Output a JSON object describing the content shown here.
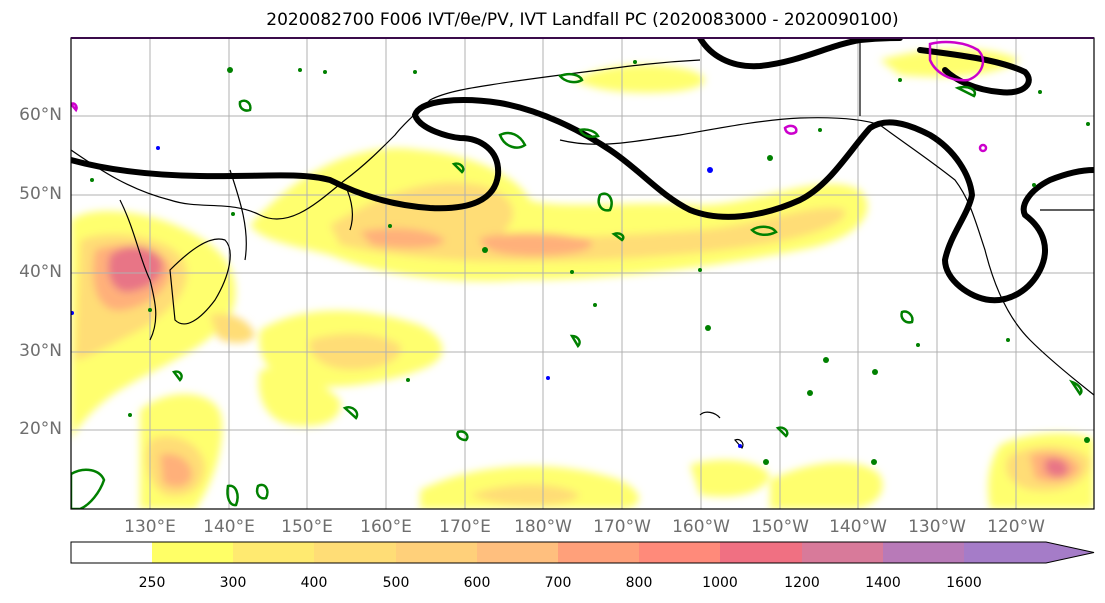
{
  "title": "2020082700 F006 IVT/θe/PV, IVT Landfall PC (2020083000 - 2020090100)",
  "map": {
    "lat_labels": [
      "60°N",
      "50°N",
      "40°N",
      "30°N",
      "20°N"
    ],
    "lon_labels": [
      "130°E",
      "140°E",
      "150°E",
      "160°E",
      "170°E",
      "180°W",
      "170°W",
      "160°W",
      "150°W",
      "140°W",
      "130°W",
      "120°W"
    ],
    "colors": {
      "contour_black": "#000000",
      "contour_green": "#008000",
      "contour_magenta": "#cc00cc",
      "contour_blue": "#0000ff",
      "grid": "#b0b0b0",
      "frame_top": "#3a0b4a"
    }
  },
  "colorbar": {
    "levels": [
      "250",
      "300",
      "400",
      "500",
      "600",
      "700",
      "800",
      "1000",
      "1200",
      "1400",
      "1600"
    ],
    "colors": [
      "#ffff66",
      "#ffea70",
      "#ffdd76",
      "#ffd07a",
      "#ffbf7e",
      "#ffa07a",
      "#ff8a7a",
      "#f07082",
      "#d87a9a",
      "#b87ab8",
      "#a57cc8"
    ],
    "extend": "max"
  },
  "chart_data": {
    "type": "heatmap",
    "title": "2020082700 F006 IVT/θe/PV, IVT Landfall PC (2020083000 - 2020090100)",
    "x_range": [
      "120°E",
      "110°W"
    ],
    "y_range": [
      "10°N",
      "70°N"
    ],
    "grid": true,
    "levels": [
      250,
      300,
      400,
      500,
      600,
      700,
      800,
      1000,
      1200,
      1400,
      1600
    ]
  }
}
